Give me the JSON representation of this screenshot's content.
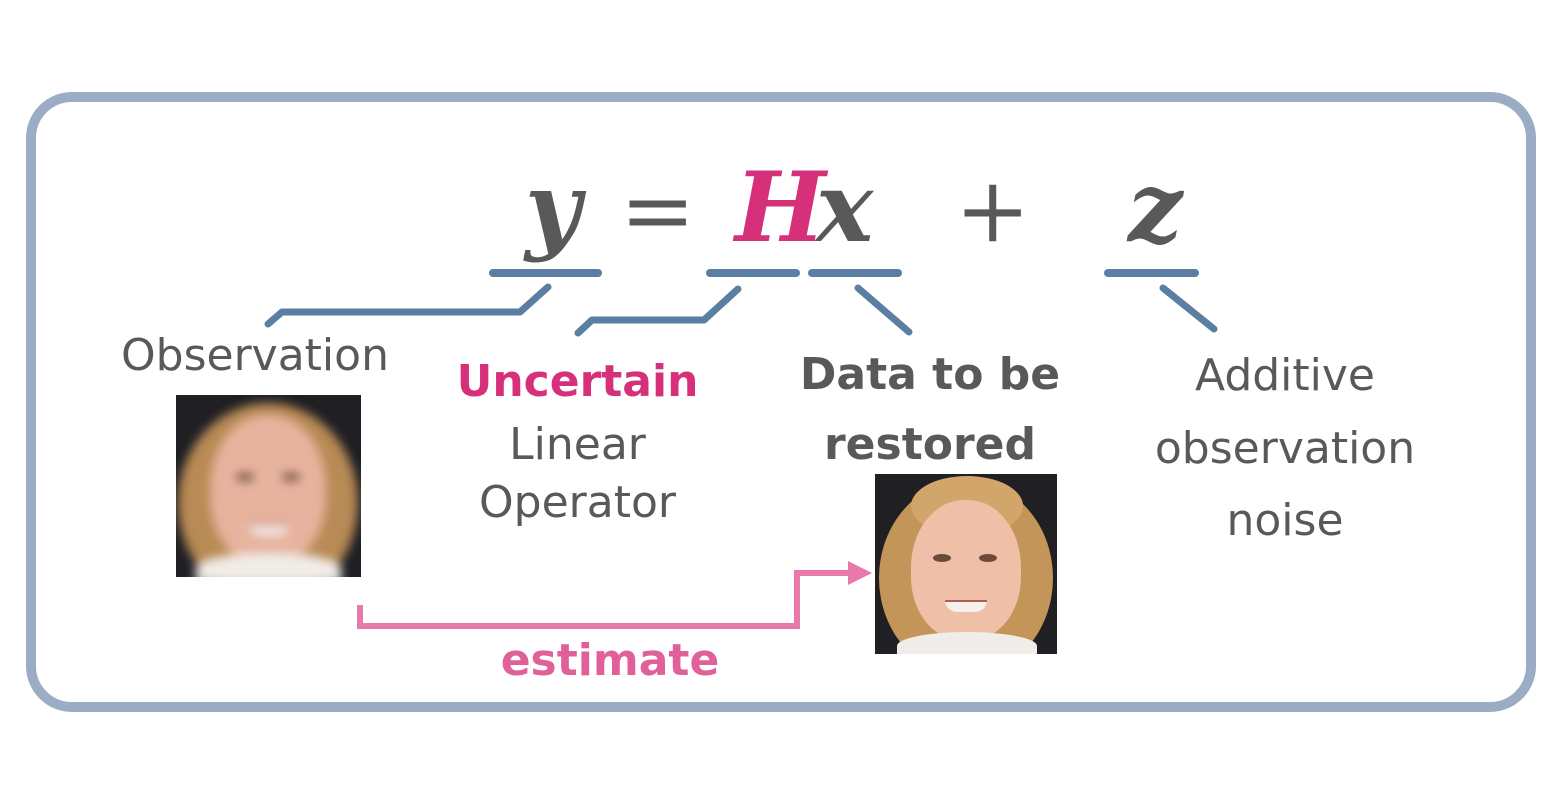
{
  "equation": {
    "y": "y",
    "equals": "=",
    "H": "H",
    "x": "x",
    "plus": "+",
    "z": "z"
  },
  "labels": {
    "observation": "Observation",
    "operator_highlight": "Uncertain",
    "operator_line1": "Linear",
    "operator_line2": "Operator",
    "data_line1": "Data to be",
    "data_line2": "restored",
    "noise_line1": "Additive",
    "noise_line2": "observation",
    "noise_line3": "noise"
  },
  "arrow": {
    "label": "estimate"
  },
  "colors": {
    "frame": "#9aadc4",
    "connector": "#5b7fa3",
    "accent": "#d6307a",
    "arrow": "#e879ac",
    "text": "#595959"
  }
}
